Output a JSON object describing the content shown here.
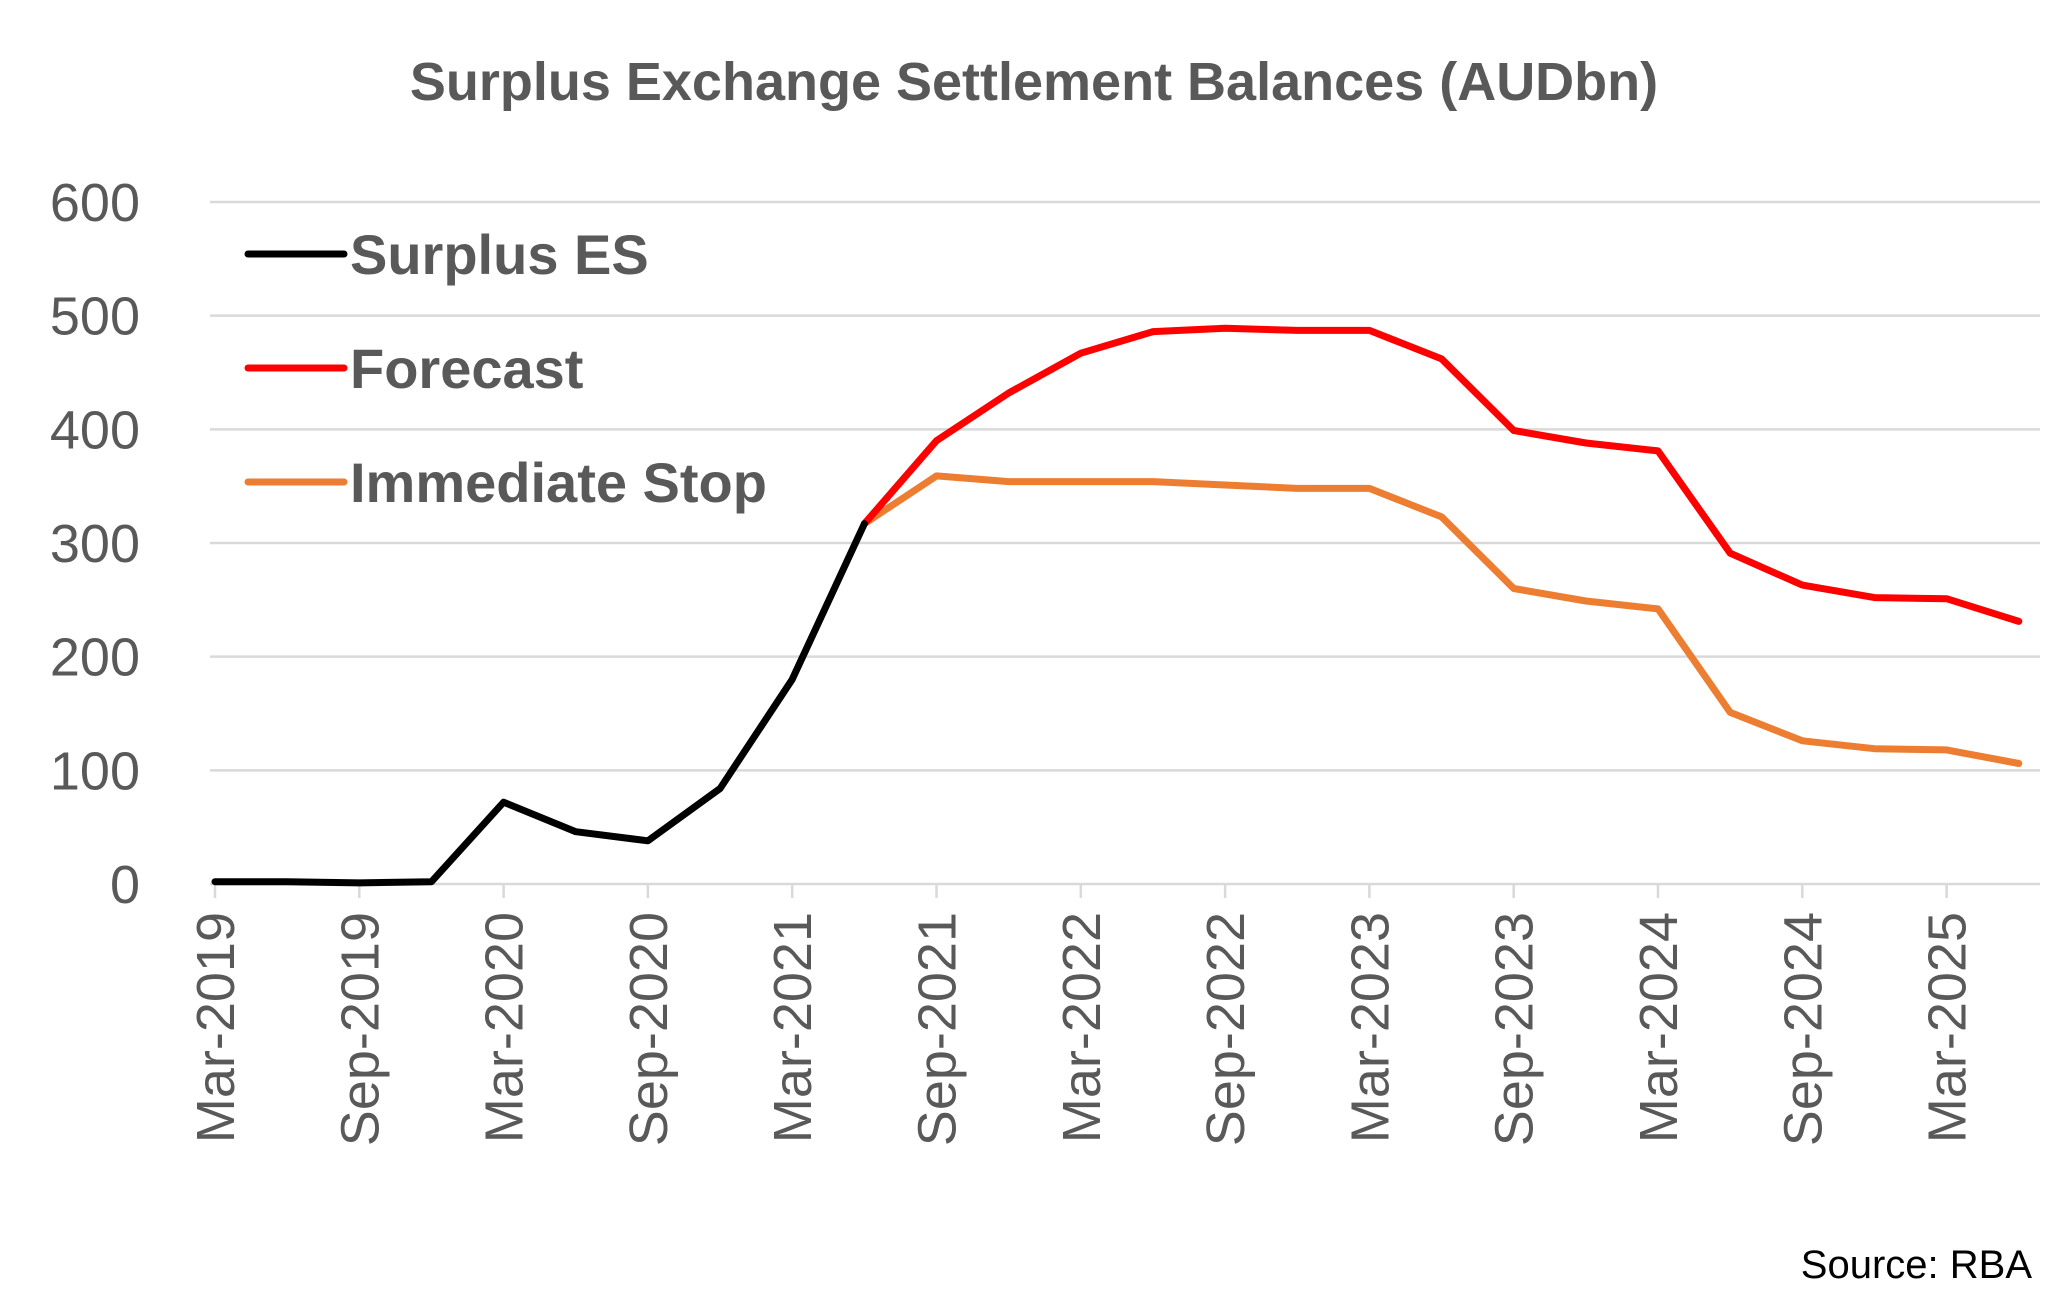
{
  "chart_data": {
    "type": "line",
    "title": "Surplus Exchange Settlement Balances (AUDbn)",
    "source": "Source: RBA",
    "xlabel": "",
    "ylabel": "",
    "ylim": [
      0,
      600
    ],
    "yticks": [
      "0",
      "100",
      "200",
      "300",
      "400",
      "500",
      "600"
    ],
    "xticks": [
      "Mar-2019",
      "Sep-2019",
      "Mar-2020",
      "Sep-2020",
      "Mar-2021",
      "Sep-2021",
      "Mar-2022",
      "Sep-2022",
      "Mar-2023",
      "Sep-2023",
      "Mar-2024",
      "Sep-2024",
      "Mar-2025"
    ],
    "grid": true,
    "legend_position": "top-left",
    "series": [
      {
        "name": "Surplus ES",
        "color": "#000000",
        "points": [
          [
            "Mar-2019",
            2
          ],
          [
            "Jun-2019",
            2
          ],
          [
            "Sep-2019",
            1
          ],
          [
            "Dec-2019",
            2
          ],
          [
            "Mar-2020",
            72
          ],
          [
            "Jun-2020",
            46
          ],
          [
            "Sep-2020",
            38
          ],
          [
            "Dec-2020",
            84
          ],
          [
            "Mar-2021",
            180
          ],
          [
            "Jun-2021",
            317
          ]
        ]
      },
      {
        "name": "Forecast",
        "color": "#ff0000",
        "points": [
          [
            "Jun-2021",
            317
          ],
          [
            "Sep-2021",
            390
          ],
          [
            "Dec-2021",
            432
          ],
          [
            "Mar-2022",
            467
          ],
          [
            "Jun-2022",
            486
          ],
          [
            "Sep-2022",
            489
          ],
          [
            "Dec-2022",
            487
          ],
          [
            "Mar-2023",
            487
          ],
          [
            "Jun-2023",
            462
          ],
          [
            "Sep-2023",
            399
          ],
          [
            "Dec-2023",
            388
          ],
          [
            "Mar-2024",
            381
          ],
          [
            "Jun-2024",
            291
          ],
          [
            "Sep-2024",
            263
          ],
          [
            "Dec-2024",
            252
          ],
          [
            "Mar-2025",
            251
          ],
          [
            "Jun-2025",
            231
          ]
        ]
      },
      {
        "name": "Immediate Stop",
        "color": "#ed7d31",
        "points": [
          [
            "Jun-2021",
            317
          ],
          [
            "Sep-2021",
            359
          ],
          [
            "Dec-2021",
            354
          ],
          [
            "Mar-2022",
            354
          ],
          [
            "Jun-2022",
            354
          ],
          [
            "Sep-2022",
            351
          ],
          [
            "Dec-2022",
            348
          ],
          [
            "Mar-2023",
            348
          ],
          [
            "Jun-2023",
            323
          ],
          [
            "Sep-2023",
            260
          ],
          [
            "Dec-2023",
            249
          ],
          [
            "Mar-2024",
            242
          ],
          [
            "Jun-2024",
            151
          ],
          [
            "Sep-2024",
            126
          ],
          [
            "Dec-2024",
            119
          ],
          [
            "Mar-2025",
            118
          ],
          [
            "Jun-2025",
            106
          ]
        ]
      }
    ]
  }
}
